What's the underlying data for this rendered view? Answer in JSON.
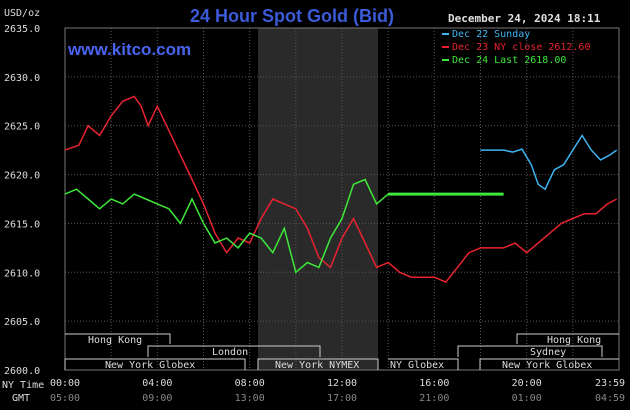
{
  "header": {
    "units": "USD/oz",
    "title": "24 Hour Spot Gold (Bid)",
    "timestamp": "December 24, 2024 18:11",
    "brand": "www.kitco.com"
  },
  "legend": [
    {
      "label": "Dec 22 Sunday",
      "color": "#3fb4f0"
    },
    {
      "label": "Dec 23 NY close 2612.60",
      "color": "#e8232f"
    },
    {
      "label": "Dec 24 Last 2618.00",
      "color": "#3ee83a"
    }
  ],
  "markets": {
    "hong_kong_left": "Hong Kong",
    "hong_kong_right": "Hong Kong",
    "london": "London",
    "sydney": "Sydney",
    "ny_globex_left": "New York Globex",
    "ny_nymex": "New York NYMEX",
    "ny_globex_mid": "NY Globex",
    "ny_globex_right": "New York Globex"
  },
  "axis_labels": {
    "ny_time": "NY Time",
    "gmt": "GMT"
  },
  "colors": {
    "background": "#000000",
    "grid": "#555555",
    "shade": "#2a2a2a",
    "title": "#3b5bd9",
    "brand": "#4a64f0"
  },
  "chart_data": {
    "type": "line",
    "title": "24 Hour Spot Gold (Bid)",
    "ylabel": "USD/oz",
    "ylim": [
      2600,
      2635
    ],
    "xlim": [
      0,
      24
    ],
    "y_ticks": [
      "2635.0",
      "2630.0",
      "2625.0",
      "2620.0",
      "2615.0",
      "2610.0",
      "2605.0",
      "2600.0"
    ],
    "x_ticks_ny": [
      "00:00",
      "04:00",
      "08:00",
      "12:00",
      "16:00",
      "20:00",
      "23:59"
    ],
    "x_ticks_gmt": [
      "05:00",
      "09:00",
      "13:00",
      "17:00",
      "21:00",
      "01:00",
      "04:59"
    ],
    "series": [
      {
        "name": "Dec 22 Sunday",
        "color": "#3fb4f0",
        "x": [
          18.0,
          19.0,
          19.4,
          19.8,
          20.2,
          20.5,
          20.8,
          21.2,
          21.6,
          22.0,
          22.4,
          22.8,
          23.2,
          23.6,
          23.9
        ],
        "y": [
          2622.5,
          2622.5,
          2622.3,
          2622.6,
          2621.0,
          2619.0,
          2618.5,
          2620.5,
          2621.0,
          2622.5,
          2624.0,
          2622.5,
          2621.5,
          2622.0,
          2622.5
        ]
      },
      {
        "name": "Dec 23 NY close 2612.60",
        "color": "#e8232f",
        "x": [
          0.0,
          0.6,
          1.0,
          1.5,
          2.0,
          2.5,
          3.0,
          3.3,
          3.6,
          4.0,
          4.5,
          5.0,
          5.5,
          6.0,
          6.5,
          7.0,
          7.5,
          8.0,
          8.5,
          9.0,
          9.5,
          10.0,
          10.5,
          11.0,
          11.5,
          12.0,
          12.5,
          13.0,
          13.5,
          14.0,
          14.5,
          15.0,
          15.5,
          16.0,
          16.5,
          17.0,
          17.5,
          18.0,
          18.5,
          19.0,
          19.5,
          20.0,
          20.5,
          21.0,
          21.5,
          22.0,
          22.5,
          23.0,
          23.5,
          23.9
        ],
        "y": [
          2622.5,
          2623.0,
          2625.0,
          2624.0,
          2626.0,
          2627.5,
          2628.0,
          2627.0,
          2625.0,
          2627.0,
          2624.5,
          2622.0,
          2619.5,
          2617.0,
          2614.0,
          2612.0,
          2613.5,
          2613.0,
          2615.5,
          2617.5,
          2617.0,
          2616.5,
          2614.5,
          2611.5,
          2610.5,
          2613.5,
          2615.5,
          2613.0,
          2610.5,
          2611.0,
          2610.0,
          2609.5,
          2609.5,
          2609.5,
          2609.0,
          2610.5,
          2612.0,
          2612.5,
          2612.5,
          2612.5,
          2613.0,
          2612.0,
          2613.0,
          2614.0,
          2615.0,
          2615.5,
          2616.0,
          2616.0,
          2617.0,
          2617.5
        ]
      },
      {
        "name": "Dec 24 Last 2618.00",
        "color": "#3ee83a",
        "x": [
          0.0,
          0.5,
          1.0,
          1.5,
          2.0,
          2.5,
          3.0,
          3.5,
          4.0,
          4.5,
          5.0,
          5.5,
          6.0,
          6.5,
          7.0,
          7.5,
          8.0,
          8.5,
          9.0,
          9.5,
          10.0,
          10.5,
          11.0,
          11.5,
          12.0,
          12.5,
          13.0,
          13.5,
          14.0,
          15.0,
          16.0,
          17.0,
          18.0,
          19.0
        ],
        "y": [
          2618.0,
          2618.5,
          2617.5,
          2616.5,
          2617.5,
          2617.0,
          2618.0,
          2617.5,
          2617.0,
          2616.5,
          2615.0,
          2617.5,
          2615.0,
          2613.0,
          2613.5,
          2612.5,
          2614.0,
          2613.5,
          2612.0,
          2614.5,
          2610.0,
          2611.0,
          2610.5,
          2613.5,
          2615.5,
          2619.0,
          2619.5,
          2617.0,
          2618.0,
          2618.0,
          2618.0,
          2618.0,
          2618.0,
          2618.0
        ]
      }
    ]
  }
}
